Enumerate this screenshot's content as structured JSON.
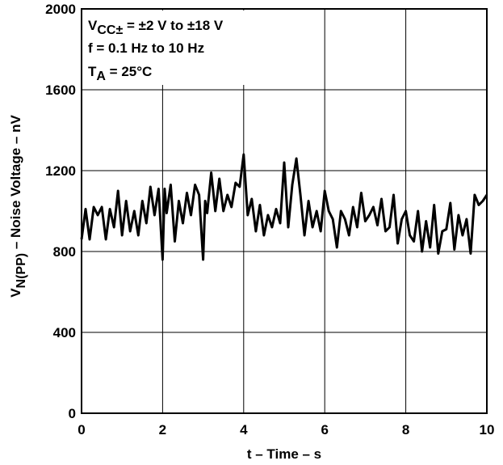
{
  "chart_data": {
    "type": "line",
    "annotation": {
      "line1_main": "V",
      "line1_sub": "CC±",
      "line1_rest": " = ±2 V to ±18 V",
      "line2": "f = 0.1 Hz to 10 Hz",
      "line3_main": "T",
      "line3_sub": "A",
      "line3_rest": " = 25°C"
    },
    "xlabel": "t – Time – s",
    "ylabel_main": "V",
    "ylabel_sub": "N(PP)",
    "ylabel_rest": " – Noise Voltage – nV",
    "xlim": [
      0,
      10
    ],
    "ylim": [
      0,
      2000
    ],
    "x_ticks": [
      "0",
      "2",
      "4",
      "6",
      "8",
      "10"
    ],
    "y_ticks": [
      "0",
      "400",
      "800",
      "1200",
      "1600",
      "2000"
    ],
    "x_tick_values": [
      0,
      2,
      4,
      6,
      8,
      10
    ],
    "y_tick_values": [
      0,
      400,
      800,
      1200,
      1600,
      2000
    ],
    "grid": true,
    "series": [
      {
        "color": "#000000",
        "x": [
          0,
          0.1,
          0.2,
          0.3,
          0.4,
          0.5,
          0.6,
          0.7,
          0.8,
          0.9,
          1.0,
          1.1,
          1.2,
          1.3,
          1.4,
          1.5,
          1.6,
          1.7,
          1.8,
          1.9,
          2.0,
          2.05,
          2.1,
          2.2,
          2.3,
          2.4,
          2.5,
          2.6,
          2.7,
          2.8,
          2.9,
          3.0,
          3.05,
          3.1,
          3.2,
          3.3,
          3.4,
          3.5,
          3.6,
          3.7,
          3.8,
          3.9,
          4.0,
          4.1,
          4.2,
          4.3,
          4.4,
          4.5,
          4.6,
          4.7,
          4.8,
          4.9,
          5.0,
          5.1,
          5.2,
          5.3,
          5.4,
          5.5,
          5.6,
          5.7,
          5.8,
          5.9,
          6.0,
          6.1,
          6.2,
          6.3,
          6.4,
          6.5,
          6.6,
          6.7,
          6.8,
          6.9,
          7.0,
          7.1,
          7.2,
          7.3,
          7.4,
          7.5,
          7.6,
          7.7,
          7.8,
          7.9,
          8.0,
          8.1,
          8.2,
          8.3,
          8.4,
          8.5,
          8.6,
          8.7,
          8.8,
          8.9,
          9.0,
          9.1,
          9.2,
          9.3,
          9.4,
          9.5,
          9.6,
          9.7,
          9.8,
          9.9,
          10.0
        ],
        "values": [
          860,
          1010,
          860,
          1020,
          980,
          1020,
          860,
          1010,
          920,
          1100,
          880,
          1050,
          900,
          1000,
          880,
          1050,
          940,
          1120,
          980,
          1110,
          760,
          1110,
          990,
          1130,
          850,
          1050,
          940,
          1090,
          980,
          1130,
          1080,
          760,
          1050,
          990,
          1190,
          1000,
          1160,
          1000,
          1080,
          1020,
          1140,
          1120,
          1280,
          980,
          1060,
          900,
          1030,
          880,
          980,
          920,
          1010,
          940,
          1240,
          920,
          1130,
          1260,
          1080,
          880,
          1050,
          920,
          1000,
          900,
          1100,
          1000,
          960,
          820,
          1000,
          960,
          880,
          1020,
          920,
          1090,
          950,
          980,
          1020,
          930,
          1060,
          900,
          920,
          1080,
          840,
          960,
          1000,
          880,
          850,
          1000,
          800,
          950,
          820,
          1030,
          790,
          900,
          910,
          1040,
          810,
          980,
          880,
          960,
          790,
          1080,
          1030,
          1050,
          1080
        ]
      }
    ]
  }
}
